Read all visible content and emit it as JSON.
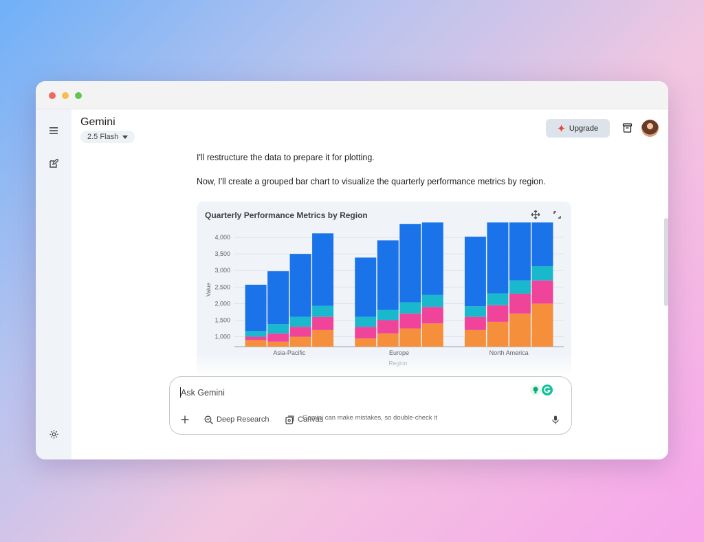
{
  "app": {
    "name": "Gemini",
    "model": "2.5 Flash",
    "upgrade_label": "Upgrade"
  },
  "messages": [
    "I'll restructure the data to prepare it for plotting.",
    "Now, I'll create a grouped bar chart to visualize the quarterly performance metrics by region."
  ],
  "chart_data": {
    "type": "bar",
    "stacked": true,
    "title": "Quarterly Performance Metrics by Region",
    "xlabel": "Region",
    "ylabel": "Value",
    "ylim": [
      700,
      4500
    ],
    "yticks": [
      1000,
      1500,
      2000,
      2500,
      3000,
      3500,
      4000
    ],
    "ytick_labels": [
      "1,000",
      "1,500",
      "2,000",
      "2,500",
      "3,000",
      "3,500",
      "4,000"
    ],
    "grid": true,
    "legend": "none",
    "categories": [
      "Asia-Pacific",
      "Europe",
      "North America"
    ],
    "bars_per_category": 4,
    "series_colors": [
      "#f68f3c",
      "#f0449b",
      "#1ab8cc",
      "#1a73e8"
    ],
    "bars": [
      [
        [
          900,
          1000,
          1170,
          2570
        ],
        [
          850,
          1100,
          1380,
          2980
        ],
        [
          1000,
          1300,
          1600,
          3500
        ],
        [
          1200,
          1600,
          1930,
          4120
        ]
      ],
      [
        [
          950,
          1300,
          1600,
          3390
        ],
        [
          1100,
          1500,
          1810,
          3910
        ],
        [
          1250,
          1700,
          2040,
          4400
        ],
        [
          1400,
          1900,
          2260,
          4450
        ]
      ],
      [
        [
          1200,
          1600,
          1920,
          4020
        ],
        [
          1450,
          1950,
          2310,
          4450
        ],
        [
          1700,
          2300,
          2700,
          4450
        ],
        [
          2000,
          2700,
          3130,
          4450
        ]
      ]
    ]
  },
  "chart_tools": {
    "interactive_icon": "sparkle-move-icon",
    "expand_icon": "expand-icon"
  },
  "input": {
    "placeholder": "Ask Gemini",
    "tools": [
      "Deep Research",
      "Canvas"
    ]
  },
  "disclaimer": "Gemini can make mistakes, so double-check it",
  "colors": {
    "accent": "#1a73e8",
    "upgrade_star": "#e8453c",
    "sidebar_bg": "#f0f4f9"
  }
}
